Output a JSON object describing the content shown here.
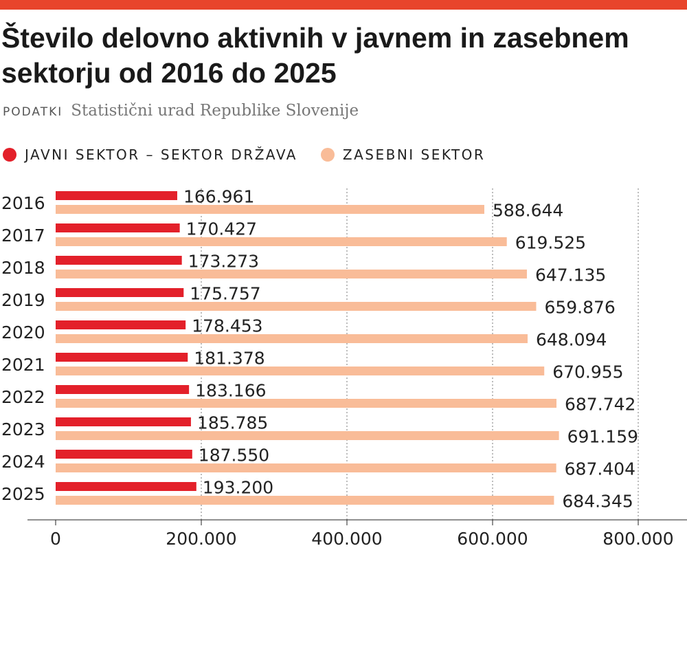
{
  "header": {
    "title": "Število delovno aktivnih v javnem in zasebnem sektorju od 2016 do 2025",
    "source_label": "PODATKI",
    "source_text": "Statistični urad Republike Slovenije"
  },
  "colors": {
    "accent_bar": "#e8452b",
    "public": "#e3202a",
    "private": "#f9bc98"
  },
  "chart_data": {
    "type": "bar",
    "orientation": "horizontal",
    "title": "Število delovno aktivnih v javnem in zasebnem sektorju od 2016 do 2025",
    "categories": [
      "2016",
      "2017",
      "2018",
      "2019",
      "2020",
      "2021",
      "2022",
      "2023",
      "2024",
      "2025"
    ],
    "series": [
      {
        "name": "JAVNI SEKTOR – SEKTOR DRŽAVA",
        "color": "#e3202a",
        "values": [
          166961,
          170427,
          173273,
          175757,
          178453,
          181378,
          183166,
          185785,
          187550,
          193200
        ],
        "labels": [
          "166.961",
          "170.427",
          "173.273",
          "175.757",
          "178.453",
          "181.378",
          "183.166",
          "185.785",
          "187.550",
          "193.200"
        ]
      },
      {
        "name": "ZASEBNI SEKTOR",
        "color": "#f9bc98",
        "values": [
          588644,
          619525,
          647135,
          659876,
          648094,
          670955,
          687742,
          691159,
          687404,
          684345
        ],
        "labels": [
          "588.644",
          "619.525",
          "647.135",
          "659.876",
          "648.094",
          "670.955",
          "687.742",
          "691.159",
          "687.404",
          "684.345"
        ]
      }
    ],
    "xlim": [
      0,
      800000
    ],
    "xticks": [
      0,
      200000,
      400000,
      600000,
      800000
    ],
    "xtick_labels": [
      "0",
      "200.000",
      "400.000",
      "600.000",
      "800.000"
    ],
    "grid": "vertical dotted",
    "legend_position": "top-left",
    "xlabel": "",
    "ylabel": ""
  }
}
